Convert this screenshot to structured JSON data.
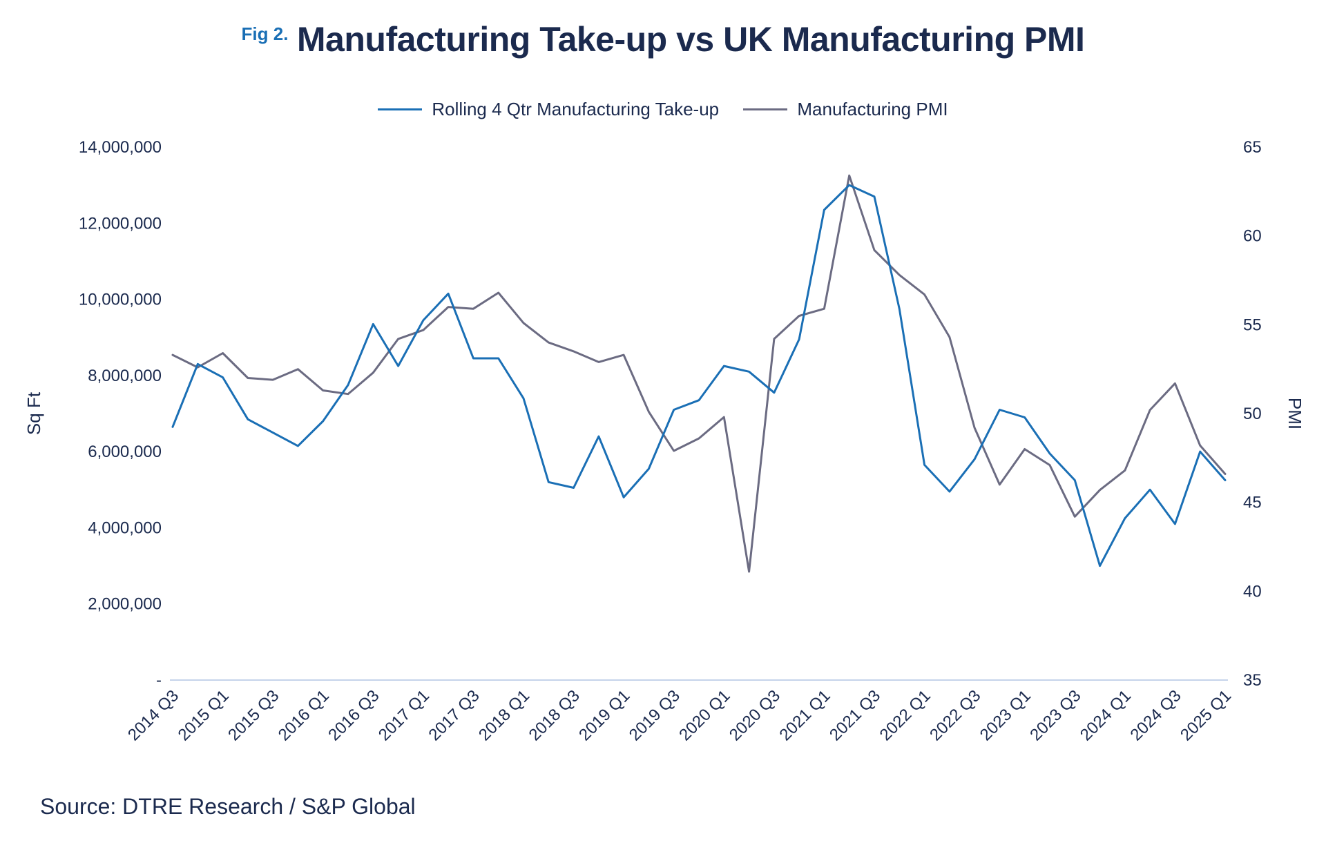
{
  "figure_label": "Fig 2.",
  "source": "Source: DTRE Research / S&P Global",
  "colors": {
    "takeup": "#1a6fb5",
    "pmi": "#6b6b82",
    "axis": "#c5d3ea",
    "text": "#1b2a4e"
  },
  "chart_data": {
    "type": "line",
    "title": "Manufacturing Take-up vs UK Manufacturing PMI",
    "ylabel": "Sq Ft",
    "y2label": "PMI",
    "ylim": [
      0,
      14000000
    ],
    "y2lim": [
      35,
      65
    ],
    "yticks": [
      "-",
      "2,000,000",
      "4,000,000",
      "6,000,000",
      "8,000,000",
      "10,000,000",
      "12,000,000",
      "14,000,000"
    ],
    "y2ticks": [
      "35",
      "40",
      "45",
      "50",
      "55",
      "60",
      "65"
    ],
    "x": [
      "2014 Q3",
      "2014 Q4",
      "2015 Q1",
      "2015 Q2",
      "2015 Q3",
      "2015 Q4",
      "2016 Q1",
      "2016 Q2",
      "2016 Q3",
      "2016 Q4",
      "2017 Q1",
      "2017 Q2",
      "2017 Q3",
      "2017 Q4",
      "2018 Q1",
      "2018 Q2",
      "2018 Q3",
      "2018 Q4",
      "2019 Q1",
      "2019 Q2",
      "2019 Q3",
      "2019 Q4",
      "2020 Q1",
      "2020 Q2",
      "2020 Q3",
      "2020 Q4",
      "2021 Q1",
      "2021 Q2",
      "2021 Q3",
      "2021 Q4",
      "2022 Q1",
      "2022 Q2",
      "2022 Q3",
      "2022 Q4",
      "2023 Q1",
      "2023 Q2",
      "2023 Q3",
      "2023 Q4",
      "2024 Q1",
      "2024 Q2",
      "2024 Q3",
      "2024 Q4",
      "2025 Q1"
    ],
    "xticklabels": [
      "2014 Q3",
      "2015 Q1",
      "2015 Q3",
      "2016 Q1",
      "2016 Q3",
      "2017 Q1",
      "2017 Q3",
      "2018 Q1",
      "2018 Q3",
      "2019 Q1",
      "2019 Q3",
      "2020 Q1",
      "2020 Q3",
      "2021 Q1",
      "2021 Q3",
      "2022 Q1",
      "2022 Q3",
      "2023 Q1",
      "2023 Q3",
      "2024 Q1",
      "2024 Q3",
      "2025 Q1"
    ],
    "series": [
      {
        "name": "Rolling 4 Qtr Manufacturing Take-up",
        "axis": "left",
        "values": [
          6650000,
          8300000,
          7950000,
          6850000,
          6500000,
          6150000,
          6800000,
          7750000,
          9350000,
          8250000,
          9450000,
          10150000,
          8450000,
          8450000,
          7400000,
          5200000,
          5050000,
          6400000,
          4800000,
          5550000,
          7100000,
          7350000,
          8250000,
          8100000,
          7550000,
          8950000,
          12350000,
          13000000,
          12700000,
          9750000,
          5650000,
          4950000,
          5800000,
          7100000,
          6900000,
          5950000,
          5250000,
          3000000,
          4250000,
          5000000,
          4100000,
          6000000,
          5250000
        ]
      },
      {
        "name": "Manufacturing PMI",
        "axis": "right",
        "values": [
          53.3,
          52.6,
          53.4,
          52.0,
          51.9,
          52.5,
          51.3,
          51.1,
          52.3,
          54.2,
          54.7,
          56.0,
          55.9,
          56.8,
          55.1,
          54.0,
          53.5,
          52.9,
          53.3,
          50.1,
          47.9,
          48.6,
          49.8,
          41.1,
          54.2,
          55.5,
          55.9,
          63.4,
          59.2,
          57.8,
          56.7,
          54.3,
          49.2,
          46.0,
          48.0,
          47.1,
          44.2,
          45.7,
          46.8,
          50.2,
          51.7,
          48.2,
          46.6
        ]
      }
    ]
  }
}
